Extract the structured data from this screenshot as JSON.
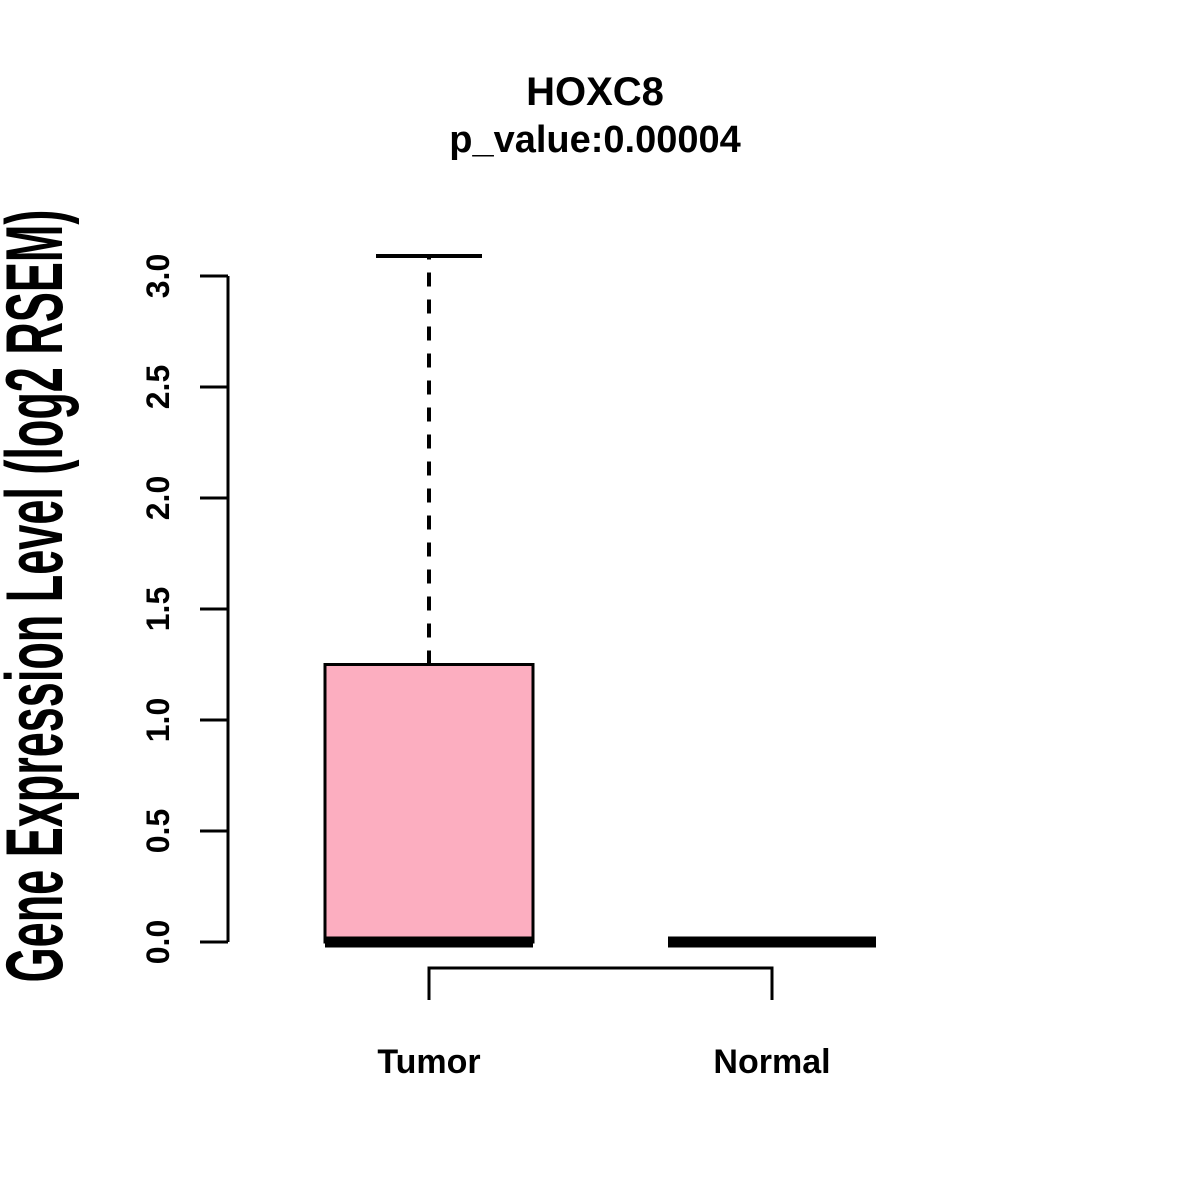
{
  "chart_data": {
    "type": "boxplot",
    "title": "HOXC8",
    "subtitle": "p_value:0.00004",
    "ylabel": "Gene Expression Level (log2 RSEM)",
    "xlabel": "",
    "ylim": [
      0,
      3.1
    ],
    "ytick_labels": [
      "0.0",
      "0.5",
      "1.0",
      "1.5",
      "2.0",
      "2.5",
      "3.0"
    ],
    "grid": "off",
    "legend": "none",
    "categories": [
      "Tumor",
      "Normal"
    ],
    "series": [
      {
        "name": "Tumor",
        "lower_whisker": 0,
        "q1": 0,
        "median": 0,
        "q3": 1.25,
        "upper_whisker": 3.09,
        "box_fill": "#FCAEC0"
      },
      {
        "name": "Normal",
        "lower_whisker": 0,
        "q1": 0,
        "median": 0,
        "q3": 0,
        "upper_whisker": 0,
        "box_fill": "#FCAEC0"
      }
    ],
    "comparison_bracket": {
      "from": "Tumor",
      "to": "Normal"
    },
    "colors": {
      "box_fill": "#FCAEC0",
      "stroke": "#000000",
      "text": "#000000",
      "background": "#FFFFFF"
    }
  }
}
